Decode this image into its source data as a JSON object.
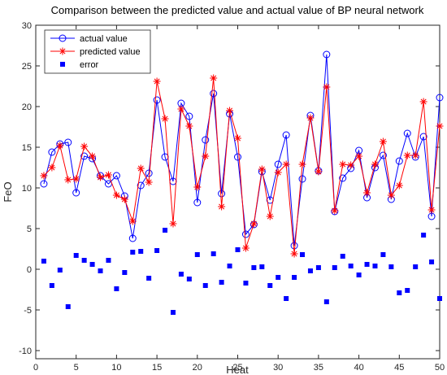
{
  "chart_data": {
    "type": "line",
    "title": "Comparison between the predicted value and actual value of BP neural network",
    "xlabel": "Heat",
    "ylabel": "FeO",
    "xlim": [
      0,
      50
    ],
    "ylim": [
      -11,
      30
    ],
    "xticks": [
      0,
      5,
      10,
      15,
      20,
      25,
      30,
      35,
      40,
      45,
      50
    ],
    "yticks": [
      -10,
      -5,
      0,
      5,
      10,
      15,
      20,
      25,
      30
    ],
    "grid": false,
    "legend_position": "top-left",
    "x": [
      1,
      2,
      3,
      4,
      5,
      6,
      7,
      8,
      9,
      10,
      11,
      12,
      13,
      14,
      15,
      16,
      17,
      18,
      19,
      20,
      21,
      22,
      23,
      24,
      25,
      26,
      27,
      28,
      29,
      30,
      31,
      32,
      33,
      34,
      35,
      36,
      37,
      38,
      39,
      40,
      41,
      42,
      43,
      44,
      45,
      46,
      47,
      48,
      49,
      50
    ],
    "series": [
      {
        "name": "actual value",
        "style": "line-circle",
        "color": "#0000ff",
        "values": [
          10.5,
          14.4,
          15.4,
          15.6,
          9.4,
          13.9,
          13.6,
          11.5,
          10.5,
          11.5,
          9.0,
          3.8,
          10.3,
          11.8,
          20.8,
          13.8,
          10.8,
          20.4,
          18.8,
          8.2,
          15.9,
          21.6,
          9.3,
          19.1,
          13.8,
          4.3,
          5.5,
          12.0,
          8.5,
          12.9,
          16.5,
          2.9,
          11.1,
          18.9,
          12.1,
          26.4,
          7.1,
          11.2,
          12.4,
          14.6,
          8.8,
          12.5,
          14.0,
          8.6,
          13.3,
          16.7,
          13.8,
          16.3,
          6.5,
          21.1
        ]
      },
      {
        "name": "predicted value",
        "style": "line-star",
        "color": "#ff0000",
        "values": [
          11.5,
          12.5,
          15.2,
          11.0,
          11.1,
          15.1,
          13.9,
          11.3,
          11.6,
          9.1,
          8.6,
          5.9,
          12.4,
          10.7,
          23.1,
          18.5,
          5.6,
          19.7,
          17.6,
          10.1,
          13.9,
          23.5,
          7.7,
          19.5,
          16.1,
          2.6,
          5.6,
          12.3,
          6.5,
          11.9,
          12.9,
          1.9,
          12.9,
          18.6,
          12.0,
          22.4,
          7.2,
          12.9,
          12.8,
          13.9,
          9.4,
          12.9,
          15.7,
          9.1,
          10.3,
          14.0,
          14.0,
          20.6,
          7.3,
          17.6
        ]
      },
      {
        "name": "error",
        "style": "marker-square",
        "color": "#0000ff",
        "values": [
          1.0,
          -2.0,
          -0.1,
          -4.6,
          1.7,
          1.1,
          0.6,
          -0.2,
          1.1,
          -2.4,
          -0.4,
          2.1,
          2.2,
          -1.1,
          2.3,
          4.8,
          -5.3,
          -0.6,
          -1.2,
          1.8,
          -2.0,
          1.9,
          -1.6,
          0.4,
          2.4,
          -1.7,
          0.2,
          0.3,
          -2.0,
          -1.0,
          -3.6,
          -1.0,
          1.8,
          -0.2,
          0.2,
          -4.0,
          0.2,
          1.6,
          0.4,
          -0.7,
          0.6,
          0.4,
          1.8,
          0.3,
          -2.9,
          -2.6,
          0.3,
          4.2,
          0.9,
          -3.6
        ]
      }
    ]
  }
}
